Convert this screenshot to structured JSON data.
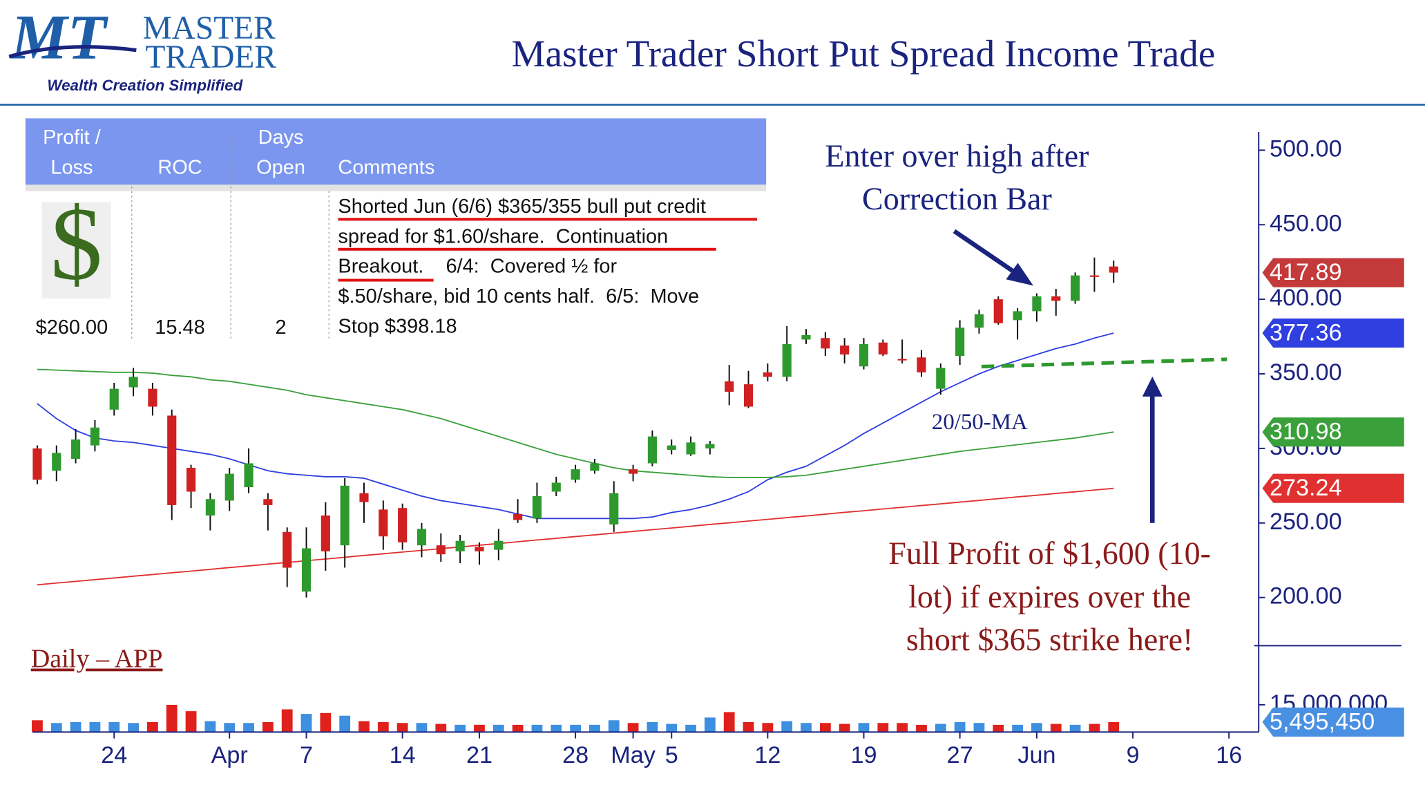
{
  "header": {
    "logo_mark": "MT",
    "logo_line1": "MASTER",
    "logo_line2": "TRADER",
    "tagline": "Wealth Creation Simplified",
    "title": "Master Trader Short Put Spread Income Trade"
  },
  "table": {
    "headers": [
      [
        "Profit /",
        "Loss"
      ],
      [
        "ROC"
      ],
      [
        "Days",
        "Open"
      ],
      [
        "Comments"
      ]
    ],
    "icon": "$",
    "row": [
      "$260.00",
      "15.48",
      "2"
    ],
    "comments": [
      "Shorted Jun (6/6) $365/355 bull put credit",
      "spread for $1.60/share.  Continuation",
      "Breakout.    6/4:  Covered ½ for",
      "$.50/share, bid 10 cents half.  6/5:  Move",
      "Stop $398.18"
    ]
  },
  "chart_data": {
    "type": "candlestick",
    "label": "Daily – APP",
    "annotations": {
      "entry": [
        "Enter over high after",
        "Correction Bar"
      ],
      "ma": "20/50-MA",
      "profit": [
        "Full Profit of $1,600 (10-",
        "lot) if expires over the",
        "short $365 strike here!"
      ]
    },
    "categories": [
      null,
      null,
      null,
      null,
      "24",
      null,
      null,
      null,
      null,
      null,
      "Apr",
      null,
      null,
      null,
      "7",
      null,
      null,
      null,
      null,
      "14",
      null,
      null,
      null,
      "21",
      null,
      null,
      null,
      null,
      "28",
      null,
      null,
      "May",
      null,
      "5",
      null,
      null,
      null,
      null,
      "12",
      null,
      null,
      null,
      null,
      "19",
      null,
      null,
      null,
      null,
      "27",
      null,
      null,
      null,
      "Jun",
      null,
      null,
      null,
      null,
      "9",
      null,
      null,
      null,
      null,
      "16"
    ],
    "open": [
      300,
      285,
      293,
      302,
      326,
      341,
      340,
      322,
      287,
      255,
      265,
      274,
      266,
      244,
      204,
      255,
      235,
      270,
      259,
      260,
      235,
      235,
      231,
      234,
      232,
      256,
      253,
      271,
      279,
      285,
      249,
      286,
      290,
      299,
      296,
      300,
      345,
      343,
      351,
      348,
      373,
      374,
      369,
      355,
      371,
      360,
      361,
      340,
      362,
      381,
      400,
      386,
      392,
      402,
      399,
      416,
      422,
      null,
      null,
      null,
      null,
      null,
      null
    ],
    "high": [
      302,
      302,
      313,
      319,
      344,
      354,
      344,
      326,
      289,
      270,
      287,
      300,
      270,
      247,
      247,
      264,
      280,
      277,
      265,
      263,
      250,
      243,
      242,
      237,
      246,
      266,
      277,
      281,
      289,
      293,
      278,
      289,
      312,
      306,
      308,
      305,
      356,
      352,
      357,
      382,
      380,
      378,
      374,
      374,
      373,
      373,
      366,
      357,
      386,
      393,
      402,
      394,
      404,
      407,
      418,
      428,
      426,
      null,
      null,
      null,
      null,
      null,
      null
    ],
    "low": [
      276,
      278,
      290,
      298,
      322,
      335,
      322,
      252,
      260,
      245,
      258,
      270,
      245,
      207,
      200,
      218,
      220,
      250,
      232,
      232,
      227,
      224,
      223,
      222,
      225,
      250,
      250,
      268,
      277,
      283,
      244,
      278,
      288,
      296,
      295,
      296,
      329,
      327,
      345,
      345,
      370,
      362,
      357,
      353,
      362,
      357,
      348,
      336,
      356,
      377,
      383,
      373,
      385,
      389,
      397,
      405,
      411,
      null,
      null,
      null,
      null,
      null,
      null
    ],
    "close": [
      279,
      297,
      306,
      314,
      340,
      348,
      328,
      262,
      271,
      266,
      283,
      290,
      262,
      220,
      233,
      231,
      275,
      264,
      241,
      237,
      246,
      229,
      238,
      231,
      238,
      252,
      268,
      277,
      286,
      290,
      270,
      283,
      308,
      302,
      304,
      303,
      338,
      328,
      348,
      370,
      376,
      367,
      363,
      370,
      363,
      359,
      351,
      354,
      381,
      390,
      384,
      392,
      402,
      399,
      416,
      415,
      417.89,
      null,
      null,
      null,
      null,
      null,
      null
    ],
    "up_color": "#2e9a2e",
    "down_color": "#d02020",
    "close_label_color": "#c43a3a",
    "series": [
      {
        "color": "#2f3fe0",
        "values": [
          330,
          320,
          312,
          307,
          305,
          304,
          302,
          300,
          298,
          296,
          293,
          289,
          285,
          283,
          282,
          281,
          281,
          280,
          276,
          272,
          268,
          265,
          263,
          261,
          259,
          256,
          253,
          253,
          253,
          253,
          253,
          253,
          254,
          257,
          259,
          262,
          266,
          271,
          279,
          284,
          288,
          295,
          302,
          310,
          317,
          324,
          331,
          338,
          344,
          350,
          355,
          359,
          363,
          367,
          370,
          374,
          377.36,
          null,
          null,
          null,
          null,
          null,
          null
        ]
      },
      {
        "color": "#3aa03a",
        "values": [
          353,
          352.5,
          352,
          351.5,
          351,
          351,
          350.5,
          349,
          348,
          346,
          345,
          343,
          341,
          339,
          336,
          334,
          332,
          330,
          328,
          326,
          323,
          320,
          316,
          312,
          308,
          304,
          300,
          296,
          293,
          290,
          287,
          285,
          284,
          283,
          282,
          281,
          280.5,
          280.5,
          280.5,
          281,
          282,
          284,
          286,
          288,
          290,
          292,
          294,
          296,
          298,
          299.5,
          301,
          302.5,
          304,
          305.5,
          307,
          309,
          310.98,
          null,
          null,
          null,
          null,
          null,
          null
        ]
      },
      {
        "color": "#e03030",
        "values": [
          208.5,
          209.7,
          210.8,
          212,
          213.1,
          214.3,
          215.4,
          216.6,
          217.7,
          218.9,
          220.1,
          221.2,
          222.4,
          223.5,
          224.7,
          225.8,
          227,
          228.2,
          229.3,
          230.5,
          231.6,
          232.8,
          233.9,
          235.1,
          236.2,
          237.4,
          238.6,
          239.7,
          240.9,
          242,
          243.2,
          244.3,
          245.5,
          246.6,
          247.8,
          249,
          250.1,
          251.3,
          252.4,
          253.6,
          254.7,
          255.9,
          257.1,
          258.2,
          259.4,
          260.5,
          261.7,
          262.8,
          264,
          265.1,
          266.3,
          267.5,
          268.6,
          269.8,
          270.9,
          272.1,
          273.24,
          null,
          null,
          null,
          null,
          null,
          null
        ]
      }
    ],
    "ylim": [
      170,
      512
    ],
    "yticks": [
      {
        "value": 200,
        "label": "200.00"
      },
      {
        "value": 250,
        "label": "250.00"
      },
      {
        "value": 300,
        "label": "300.00"
      },
      {
        "value": 350,
        "label": "350.00"
      },
      {
        "value": 400,
        "label": "400.00"
      },
      {
        "value": 450,
        "label": "450.00"
      },
      {
        "value": 500,
        "label": "500.00"
      }
    ],
    "volume": {
      "up_color": "#3d8fe0",
      "down_color": "#e0201b",
      "last_color": "#4a90e2",
      "values": [
        6500000,
        5000000,
        5500000,
        5500000,
        5500000,
        5000000,
        5500000,
        15000000,
        11500000,
        6000000,
        5000000,
        5000000,
        5500000,
        12500000,
        10000000,
        10500000,
        9000000,
        6000000,
        5500000,
        5000000,
        5000000,
        4500000,
        4000000,
        4000000,
        4000000,
        4000000,
        4000000,
        4000000,
        4000000,
        4000000,
        6500000,
        5000000,
        5500000,
        4500000,
        4000000,
        8000000,
        11000000,
        5500000,
        5000000,
        6000000,
        5000000,
        5000000,
        4500000,
        5000000,
        5000000,
        5000000,
        4000000,
        4500000,
        5500000,
        5000000,
        4000000,
        4000000,
        5000000,
        4500000,
        4000000,
        4500000,
        5495450,
        null,
        null,
        null,
        null,
        null,
        null
      ],
      "last_label": "5,495,450",
      "ylim": [
        0,
        47500000
      ],
      "yticks": [
        {
          "value": 15000000,
          "label": "15,000,000"
        }
      ]
    }
  }
}
